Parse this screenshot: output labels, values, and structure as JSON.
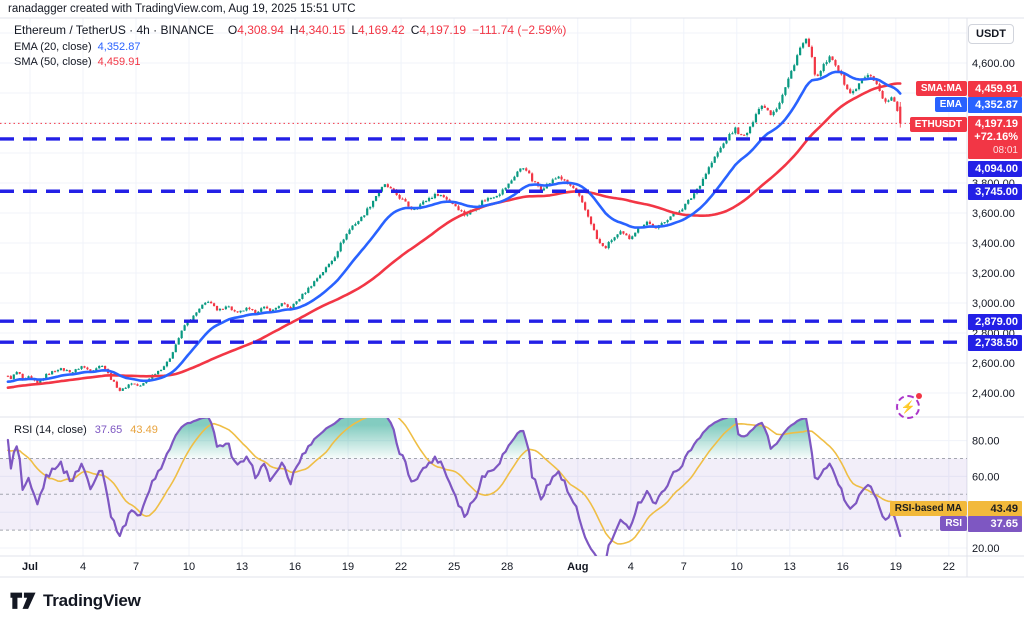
{
  "attribution": "ranadagger created with TradingView.com, Aug 19, 2025 15:51 UTC",
  "legend": {
    "symbol": "Ethereum / TetherUS · 4h · BINANCE",
    "ohlc": [
      {
        "k": "O",
        "v": "4,308.94"
      },
      {
        "k": "H",
        "v": "4,340.15"
      },
      {
        "k": "L",
        "v": "4,169.42"
      },
      {
        "k": "C",
        "v": "4,197.19"
      }
    ],
    "change": "−111.74 (−2.59%)",
    "ema_label": "EMA (20, close)",
    "ema_value": "4,352.87",
    "sma_label": "SMA (50, close)",
    "sma_value": "4,459.91"
  },
  "rsi_legend": {
    "label": "RSI (14, close)",
    "rsi_value": "37.65",
    "ma_value": "43.49"
  },
  "price_axis": {
    "currency": "USDT",
    "ticks": [
      {
        "label": "4,600.00",
        "price": 4600
      },
      {
        "label": "4,400.00",
        "price": 4400
      },
      {
        "label": "3,800.00",
        "price": 3800
      },
      {
        "label": "3,600.00",
        "price": 3600
      },
      {
        "label": "3,400.00",
        "price": 3400
      },
      {
        "label": "3,200.00",
        "price": 3200
      },
      {
        "label": "3,000.00",
        "price": 3000
      },
      {
        "label": "2,800.00",
        "price": 2800
      },
      {
        "label": "2,600.00",
        "price": 2600
      },
      {
        "label": "2,400.00",
        "price": 2400
      }
    ]
  },
  "rsi_axis": {
    "ticks": [
      {
        "label": "80.00",
        "value": 80
      },
      {
        "label": "60.00",
        "value": 60
      },
      {
        "label": "20.00",
        "value": 20
      }
    ]
  },
  "time_axis": {
    "ticks": [
      {
        "label": "Jul",
        "day": 0,
        "bold": true
      },
      {
        "label": "4",
        "day": 3
      },
      {
        "label": "7",
        "day": 6
      },
      {
        "label": "10",
        "day": 9
      },
      {
        "label": "13",
        "day": 12
      },
      {
        "label": "16",
        "day": 15
      },
      {
        "label": "19",
        "day": 18
      },
      {
        "label": "22",
        "day": 21
      },
      {
        "label": "25",
        "day": 24
      },
      {
        "label": "28",
        "day": 27
      },
      {
        "label": "Aug",
        "day": 31,
        "bold": true
      },
      {
        "label": "4",
        "day": 34
      },
      {
        "label": "7",
        "day": 37
      },
      {
        "label": "10",
        "day": 40
      },
      {
        "label": "13",
        "day": 43
      },
      {
        "label": "16",
        "day": 46
      },
      {
        "label": "19",
        "day": 49
      },
      {
        "label": "22",
        "day": 52
      }
    ]
  },
  "badges": {
    "sma": {
      "label": "SMA:MA",
      "value": "4,459.91",
      "price": 4459.91
    },
    "ema": {
      "label": "EMA",
      "value": "4,352.87",
      "price": 4352.87
    },
    "symbol": {
      "label": "ETHUSDT",
      "value": "4,197.19",
      "change": "+72.16%",
      "countdown": "08:01",
      "price": 4197.19
    },
    "rsi_ma": {
      "label": "RSI-based MA",
      "value": "43.49"
    },
    "rsi": {
      "label": "RSI",
      "value": "37.65"
    }
  },
  "levels": [
    {
      "label": "4,094.00",
      "price": 4094.0
    },
    {
      "label": "3,745.00",
      "price": 3745.0
    },
    {
      "label": "2,879.00",
      "price": 2879.0
    },
    {
      "label": "2,738.50",
      "price": 2738.5
    }
  ],
  "logo": {
    "text": "TradingView"
  },
  "colors": {
    "up": "#089981",
    "down": "#F23645",
    "ema": "#2962FF",
    "sma": "#F23645",
    "level": "#2320E6",
    "rsi": "#7E57C2",
    "rsi_ma": "#EFBE45",
    "rsi_ma_badge": "#F2B93B",
    "band_fill": "rgba(126,87,194,0.10)",
    "band_line": "#A3A6AF",
    "grid": "#F0F3FA",
    "separator": "#E0E3EB",
    "text": "#131722"
  },
  "chart_data": {
    "type": "candlestick",
    "symbol": "ETHUSDT",
    "exchange": "BINANCE",
    "interval": "4h",
    "title": "Ethereum / TetherUS · 4h · BINANCE",
    "visible_price_range": [
      2253,
      4887
    ],
    "grid_price_levels": [
      2400,
      2600,
      2800,
      3000,
      3200,
      3400,
      3600,
      3800,
      4000,
      4200,
      4400,
      4600,
      4800
    ],
    "horizontal_levels": [
      4094.0,
      3745.0,
      2879.0,
      2738.5
    ],
    "last_candle": {
      "open": 4308.94,
      "high": 4340.15,
      "low": 4169.42,
      "close": 4197.19,
      "change": -111.74,
      "change_pct": -2.59
    },
    "indicators": {
      "ema": {
        "period": 20,
        "source": "close",
        "last": 4352.87
      },
      "sma": {
        "period": 50,
        "source": "close",
        "last": 4459.91
      },
      "rsi": {
        "period": 14,
        "source": "close",
        "last": 37.65,
        "ma_last": 43.49,
        "bands": [
          70,
          50,
          30
        ],
        "scale_ticks": [
          20,
          40,
          60,
          80
        ]
      }
    },
    "candles_per_day": 6,
    "start_day_offset": -1.3333,
    "end_day_offset": 49.3333,
    "day_zero": "Jul 1",
    "price_path_anchors": [
      [
        -1.33,
        2515
      ],
      [
        -1.0,
        2500
      ],
      [
        -0.6,
        2545
      ],
      [
        -0.3,
        2480
      ],
      [
        0,
        2505
      ],
      [
        0.5,
        2462
      ],
      [
        1,
        2520
      ],
      [
        1.7,
        2562
      ],
      [
        2.5,
        2540
      ],
      [
        3,
        2578
      ],
      [
        3.5,
        2548
      ],
      [
        4.2,
        2590
      ],
      [
        4.7,
        2488
      ],
      [
        5.2,
        2412
      ],
      [
        5.8,
        2468
      ],
      [
        6.3,
        2442
      ],
      [
        7,
        2518
      ],
      [
        7.5,
        2562
      ],
      [
        7.9,
        2608
      ],
      [
        8.4,
        2742
      ],
      [
        8.9,
        2868
      ],
      [
        9.3,
        2905
      ],
      [
        9.8,
        2978
      ],
      [
        10.2,
        3018
      ],
      [
        10.7,
        2942
      ],
      [
        11.2,
        2986
      ],
      [
        11.8,
        2928
      ],
      [
        12.3,
        2962
      ],
      [
        12.8,
        2938
      ],
      [
        13.3,
        2968
      ],
      [
        13.8,
        2948
      ],
      [
        14.3,
        2996
      ],
      [
        14.8,
        2962
      ],
      [
        15.3,
        3028
      ],
      [
        15.8,
        3092
      ],
      [
        16.3,
        3162
      ],
      [
        16.8,
        3228
      ],
      [
        17.3,
        3305
      ],
      [
        17.8,
        3425
      ],
      [
        18.3,
        3512
      ],
      [
        18.8,
        3562
      ],
      [
        19.3,
        3645
      ],
      [
        19.8,
        3742
      ],
      [
        20.2,
        3788
      ],
      [
        20.7,
        3735
      ],
      [
        21.2,
        3682
      ],
      [
        21.7,
        3625
      ],
      [
        22.2,
        3658
      ],
      [
        22.7,
        3702
      ],
      [
        23.2,
        3728
      ],
      [
        23.7,
        3692
      ],
      [
        24.2,
        3645
      ],
      [
        24.7,
        3585
      ],
      [
        25.2,
        3622
      ],
      [
        25.7,
        3682
      ],
      [
        26.2,
        3705
      ],
      [
        26.7,
        3735
      ],
      [
        27.2,
        3795
      ],
      [
        27.7,
        3882
      ],
      [
        28.1,
        3908
      ],
      [
        28.5,
        3815
      ],
      [
        29,
        3762
      ],
      [
        29.5,
        3802
      ],
      [
        30,
        3845
      ],
      [
        30.5,
        3795
      ],
      [
        31,
        3748
      ],
      [
        31.4,
        3645
      ],
      [
        31.8,
        3545
      ],
      [
        32.2,
        3415
      ],
      [
        32.6,
        3362
      ],
      [
        33,
        3422
      ],
      [
        33.5,
        3468
      ],
      [
        34,
        3432
      ],
      [
        34.5,
        3498
      ],
      [
        35,
        3542
      ],
      [
        35.5,
        3492
      ],
      [
        36,
        3548
      ],
      [
        36.5,
        3592
      ],
      [
        37,
        3632
      ],
      [
        37.5,
        3702
      ],
      [
        38,
        3792
      ],
      [
        38.5,
        3902
      ],
      [
        39,
        4002
      ],
      [
        39.5,
        4092
      ],
      [
        40,
        4162
      ],
      [
        40.4,
        4102
      ],
      [
        40.8,
        4152
      ],
      [
        41.2,
        4282
      ],
      [
        41.6,
        4322
      ],
      [
        42,
        4262
      ],
      [
        42.4,
        4312
      ],
      [
        42.8,
        4425
      ],
      [
        43.2,
        4555
      ],
      [
        43.6,
        4685
      ],
      [
        44,
        4758
      ],
      [
        44.3,
        4645
      ],
      [
        44.6,
        4482
      ],
      [
        44.9,
        4562
      ],
      [
        45.3,
        4635
      ],
      [
        45.7,
        4592
      ],
      [
        46.1,
        4482
      ],
      [
        46.5,
        4392
      ],
      [
        46.9,
        4442
      ],
      [
        47.3,
        4502
      ],
      [
        47.7,
        4522
      ],
      [
        48.1,
        4432
      ],
      [
        48.5,
        4332
      ],
      [
        48.8,
        4372
      ],
      [
        49.1,
        4312
      ],
      [
        49.33,
        4197
      ]
    ]
  }
}
